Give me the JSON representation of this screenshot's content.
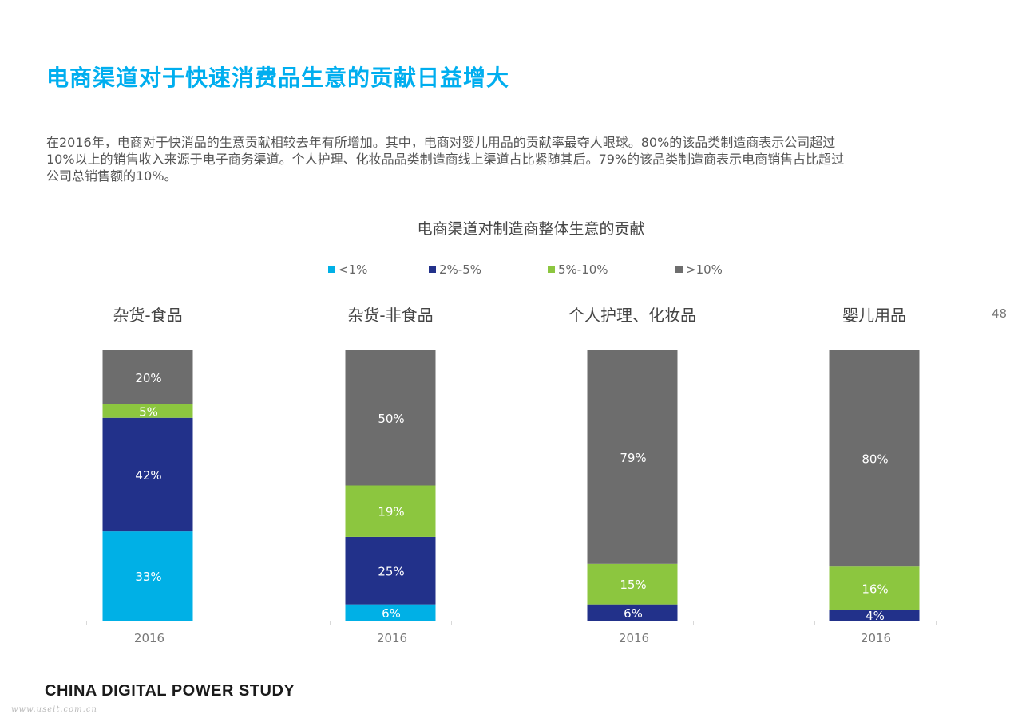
{
  "header": {
    "title": "电商渠道对于快速消费品生意的贡献日益增大",
    "intro_lines": [
      "在2016年，电商对于快消品的生意贡献相较去年有所增加。其中，电商对婴儿用品的贡献率最夺人眼球。80%的该品类制造商表示公司超过",
      "10%以上的销售收入来源于电子商务渠道。个人护理、化妆品品类制造商线上渠道占比紧随其后。79%的该品类制造商表示电商销售占比超过",
      "公司总销售额的10%。"
    ]
  },
  "page_number": "48",
  "footer": {
    "brand": "CHINA DIGITAL POWER STUDY",
    "watermark": "www.useit.com.cn"
  },
  "chart_data": {
    "type": "bar",
    "stacked": true,
    "title": "电商渠道对制造商整体生意的贡献",
    "legend_position": "top",
    "grid": false,
    "ylim": [
      0,
      100
    ],
    "legend": [
      {
        "label": "<1%",
        "color": "#00b0e6"
      },
      {
        "label": "2%-5%",
        "color": "#22318a"
      },
      {
        "label": "5%-10%",
        "color": "#8cc63f"
      },
      {
        "label": ">10%",
        "color": "#6d6d6d"
      }
    ],
    "groups": [
      {
        "name": "杂货-食品",
        "x": "2016",
        "segments": [
          {
            "series": "<1%",
            "value": 33,
            "label": "33%"
          },
          {
            "series": "2%-5%",
            "value": 42,
            "label": "42%"
          },
          {
            "series": "5%-10%",
            "value": 5,
            "label": "5%"
          },
          {
            "series": ">10%",
            "value": 20,
            "label": "20%"
          }
        ]
      },
      {
        "name": "杂货-非食品",
        "x": "2016",
        "segments": [
          {
            "series": "<1%",
            "value": 6,
            "label": "6%"
          },
          {
            "series": "2%-5%",
            "value": 25,
            "label": "25%"
          },
          {
            "series": "5%-10%",
            "value": 19,
            "label": "19%"
          },
          {
            "series": ">10%",
            "value": 50,
            "label": "50%"
          }
        ]
      },
      {
        "name": "个人护理、化妆品",
        "x": "2016",
        "segments": [
          {
            "series": "<1%",
            "value": 0,
            "label": ""
          },
          {
            "series": "2%-5%",
            "value": 6,
            "label": "6%"
          },
          {
            "series": "5%-10%",
            "value": 15,
            "label": "15%"
          },
          {
            "series": ">10%",
            "value": 79,
            "label": "79%"
          }
        ]
      },
      {
        "name": "婴儿用品",
        "x": "2016",
        "segments": [
          {
            "series": "<1%",
            "value": 0,
            "label": ""
          },
          {
            "series": "2%-5%",
            "value": 4,
            "label": "4%"
          },
          {
            "series": "5%-10%",
            "value": 16,
            "label": "16%"
          },
          {
            "series": ">10%",
            "value": 80,
            "label": "80%"
          }
        ]
      }
    ]
  }
}
